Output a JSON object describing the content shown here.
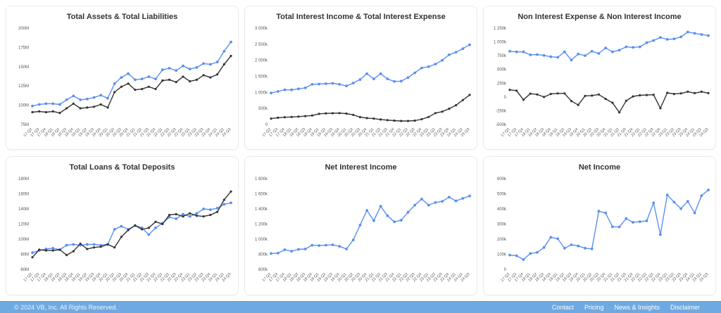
{
  "colors": {
    "series_blue": "#5b8ff0",
    "series_dark": "#333333",
    "footer_background": "#6fa9e1",
    "card_border": "#ececec",
    "title_text": "#333333",
    "tick_text": "#555555"
  },
  "categories": [
    "17 Q2",
    "17 Q3",
    "17 Q4",
    "18 Q1",
    "18 Q2",
    "18 Q3",
    "18 Q4",
    "19 Q1",
    "19 Q2",
    "19 Q3",
    "19 Q4",
    "20 Q1",
    "20 Q2",
    "20 Q3",
    "20 Q4",
    "21 Q1",
    "21 Q2",
    "21 Q3",
    "21 Q4",
    "22 Q1",
    "22 Q2",
    "22 Q3",
    "22 Q4",
    "23 Q1",
    "23 Q2",
    "23 Q3",
    "23 Q4",
    "24 Q1",
    "24 Q2",
    "24 Q3"
  ],
  "chart_data": [
    {
      "type": "line",
      "title": "Total Assets & Total Liabilities",
      "xlabel": "",
      "ylabel": "",
      "ylim": [
        75,
        200
      ],
      "y_ticks": [
        {
          "label": "200M",
          "value": 200
        },
        {
          "label": "175M",
          "value": 175
        },
        {
          "label": "150M",
          "value": 150
        },
        {
          "label": "125M",
          "value": 125
        },
        {
          "label": "100M",
          "value": 100
        },
        {
          "label": "75M",
          "value": 75
        }
      ],
      "series": [
        {
          "name": "Total Assets",
          "color": "#5b8ff0",
          "values": [
            99,
            101,
            102,
            102,
            101,
            107,
            112,
            107,
            108,
            110,
            113,
            109,
            128,
            136,
            141,
            133,
            134,
            137,
            134,
            146,
            148,
            145,
            151,
            147,
            149,
            154,
            153,
            156,
            170,
            182
          ]
        },
        {
          "name": "Total Liabilities",
          "color": "#333333",
          "values": [
            91,
            92,
            91,
            92,
            90,
            96,
            102,
            96,
            97,
            98,
            101,
            97,
            117,
            124,
            128,
            120,
            121,
            124,
            121,
            132,
            133,
            130,
            137,
            131,
            133,
            139,
            136,
            140,
            153,
            164
          ]
        }
      ]
    },
    {
      "type": "line",
      "title": "Total Interest Income & Total Interest Expense",
      "xlabel": "",
      "ylabel": "",
      "ylim": [
        0,
        3000
      ],
      "y_ticks": [
        {
          "label": "3 000k",
          "value": 3000
        },
        {
          "label": "2 500k",
          "value": 2500
        },
        {
          "label": "2 000k",
          "value": 2000
        },
        {
          "label": "1 500k",
          "value": 1500
        },
        {
          "label": "1 000k",
          "value": 1000
        },
        {
          "label": "500k",
          "value": 500
        },
        {
          "label": "0",
          "value": 0
        }
      ],
      "series": [
        {
          "name": "Total Interest Income",
          "color": "#5b8ff0",
          "values": [
            980,
            1030,
            1080,
            1080,
            1110,
            1140,
            1250,
            1260,
            1270,
            1280,
            1250,
            1200,
            1290,
            1400,
            1580,
            1420,
            1580,
            1420,
            1340,
            1350,
            1460,
            1610,
            1760,
            1800,
            1880,
            2000,
            2170,
            2250,
            2360,
            2480
          ]
        },
        {
          "name": "Total Interest Expense",
          "color": "#333333",
          "values": [
            185,
            210,
            225,
            235,
            245,
            260,
            280,
            330,
            345,
            350,
            355,
            340,
            300,
            230,
            200,
            185,
            155,
            135,
            120,
            110,
            110,
            120,
            165,
            235,
            355,
            400,
            490,
            600,
            760,
            920
          ]
        }
      ]
    },
    {
      "type": "line",
      "title": "Non Interest Expense & Non Interest Income",
      "xlabel": "",
      "ylabel": "",
      "ylim": [
        -500,
        1250
      ],
      "y_ticks": [
        {
          "label": "1 250k",
          "value": 1250
        },
        {
          "label": "1 000k",
          "value": 1000
        },
        {
          "label": "750k",
          "value": 750
        },
        {
          "label": "500k",
          "value": 500
        },
        {
          "label": "250k",
          "value": 250
        },
        {
          "label": "0",
          "value": 0
        },
        {
          "label": "-250k",
          "value": -250
        },
        {
          "label": "-500k",
          "value": -500
        }
      ],
      "series": [
        {
          "name": "Non Interest Expense",
          "color": "#5b8ff0",
          "values": [
            830,
            820,
            820,
            765,
            770,
            755,
            730,
            720,
            820,
            670,
            780,
            750,
            830,
            790,
            890,
            820,
            850,
            910,
            900,
            910,
            985,
            1025,
            1080,
            1045,
            1055,
            1090,
            1180,
            1155,
            1135,
            1115
          ]
        },
        {
          "name": "Non Interest Income",
          "color": "#333333",
          "values": [
            130,
            115,
            -50,
            60,
            45,
            0,
            55,
            65,
            65,
            -75,
            -145,
            20,
            25,
            45,
            -35,
            -105,
            -280,
            -70,
            10,
            30,
            35,
            40,
            -205,
            75,
            55,
            65,
            95,
            70,
            95,
            70
          ]
        }
      ]
    },
    {
      "type": "line",
      "title": "Total Loans & Total Deposits",
      "xlabel": "",
      "ylabel": "",
      "ylim": [
        60,
        180
      ],
      "y_ticks": [
        {
          "label": "180M",
          "value": 180
        },
        {
          "label": "160M",
          "value": 160
        },
        {
          "label": "140M",
          "value": 140
        },
        {
          "label": "120M",
          "value": 120
        },
        {
          "label": "100M",
          "value": 100
        },
        {
          "label": "80M",
          "value": 80
        },
        {
          "label": "60M",
          "value": 60
        }
      ],
      "series": [
        {
          "name": "Total Loans",
          "color": "#5b8ff0",
          "values": [
            82,
            85,
            87,
            88,
            86,
            92,
            93,
            92,
            93,
            93,
            92,
            93,
            113,
            117,
            113,
            118,
            115,
            106,
            115,
            121,
            129,
            127,
            133,
            130,
            134,
            140,
            139,
            141,
            146,
            148
          ]
        },
        {
          "name": "Total Deposits",
          "color": "#333333",
          "values": [
            76,
            86,
            85,
            85,
            86,
            79,
            84,
            94,
            87,
            89,
            90,
            93,
            89,
            103,
            112,
            118,
            113,
            115,
            123,
            120,
            132,
            133,
            130,
            134,
            131,
            130,
            132,
            136,
            152,
            163
          ]
        }
      ]
    },
    {
      "type": "line",
      "title": "Net Interest Income",
      "xlabel": "",
      "ylabel": "",
      "ylim": [
        600,
        1800
      ],
      "y_ticks": [
        {
          "label": "1 800k",
          "value": 1800
        },
        {
          "label": "1 600k",
          "value": 1600
        },
        {
          "label": "1 400k",
          "value": 1400
        },
        {
          "label": "1 200k",
          "value": 1200
        },
        {
          "label": "1 000k",
          "value": 1000
        },
        {
          "label": "800k",
          "value": 800
        },
        {
          "label": "600k",
          "value": 600
        }
      ],
      "series": [
        {
          "name": "Net Interest Income",
          "color": "#5b8ff0",
          "values": [
            810,
            815,
            860,
            840,
            865,
            870,
            920,
            915,
            920,
            925,
            905,
            870,
            990,
            1185,
            1380,
            1245,
            1435,
            1310,
            1230,
            1250,
            1355,
            1450,
            1530,
            1450,
            1485,
            1500,
            1555,
            1505,
            1540,
            1570
          ]
        }
      ]
    },
    {
      "type": "line",
      "title": "Net Income",
      "xlabel": "",
      "ylabel": "",
      "ylim": [
        0,
        600
      ],
      "y_ticks": [
        {
          "label": "600k",
          "value": 600
        },
        {
          "label": "500k",
          "value": 500
        },
        {
          "label": "400k",
          "value": 400
        },
        {
          "label": "300k",
          "value": 300
        },
        {
          "label": "200k",
          "value": 200
        },
        {
          "label": "100k",
          "value": 100
        },
        {
          "label": "0",
          "value": 0
        }
      ],
      "series": [
        {
          "name": "Net Income",
          "color": "#5b8ff0",
          "values": [
            95,
            90,
            65,
            105,
            112,
            145,
            212,
            203,
            140,
            163,
            155,
            140,
            136,
            385,
            373,
            282,
            281,
            336,
            311,
            316,
            321,
            440,
            230,
            492,
            445,
            402,
            450,
            373,
            487,
            525
          ]
        }
      ]
    }
  ],
  "footer": {
    "copyright": "© 2024 VB, Inc. All Rights Reserved.",
    "links": [
      "Contact",
      "Pricing",
      "News & Insights",
      "Disclaimer"
    ]
  }
}
